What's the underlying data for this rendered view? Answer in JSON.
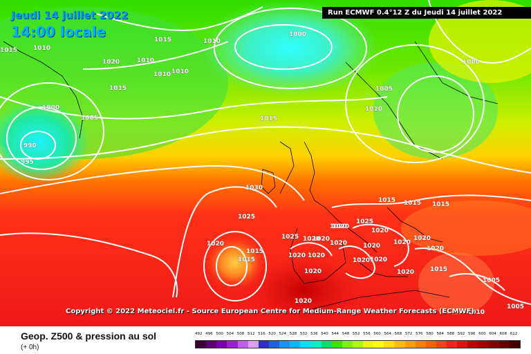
{
  "header": {
    "date_line": "Jeudi 14 juillet 2022",
    "time_line": "14:00 locale",
    "run_info": "Run ECMWF 0.4°12 Z du Jeudi 14 juillet 2022"
  },
  "map": {
    "copyright": "Copyright © 2022 Meteociel.fr - Source European Centre for Medium-Range Weather Forecasts (ECMWF)",
    "pressure_labels": [
      {
        "text": "1015"
      },
      {
        "text": "1010"
      },
      {
        "text": "1020"
      },
      {
        "text": "1015"
      },
      {
        "text": "1010"
      },
      {
        "text": "1010"
      },
      {
        "text": "1010"
      },
      {
        "text": "1000"
      },
      {
        "text": "1010"
      },
      {
        "text": "1005"
      },
      {
        "text": "990"
      },
      {
        "text": "995"
      },
      {
        "text": "1000"
      },
      {
        "text": "1015"
      },
      {
        "text": "1005"
      },
      {
        "text": "1010"
      },
      {
        "text": "1000"
      },
      {
        "text": "1015"
      },
      {
        "text": "1030"
      },
      {
        "text": "1025"
      },
      {
        "text": "1025"
      },
      {
        "text": "1020"
      },
      {
        "text": "1015"
      },
      {
        "text": "1015"
      },
      {
        "text": "1015"
      },
      {
        "text": "1015"
      },
      {
        "text": "1015"
      },
      {
        "text": "1020"
      },
      {
        "text": "1025"
      },
      {
        "text": "1020"
      },
      {
        "text": "1020"
      },
      {
        "text": "1020"
      },
      {
        "text": "1020"
      },
      {
        "text": "1020"
      },
      {
        "text": "1020"
      },
      {
        "text": "1020"
      },
      {
        "text": "1020"
      },
      {
        "text": "1020"
      },
      {
        "text": "1020"
      },
      {
        "text": "1020"
      },
      {
        "text": "1020"
      },
      {
        "text": "1020"
      },
      {
        "text": "1020"
      },
      {
        "text": "1020"
      },
      {
        "text": "1015"
      },
      {
        "text": "1005"
      },
      {
        "text": "1005"
      },
      {
        "text": "1010"
      },
      {
        "text": "1020"
      }
    ]
  },
  "legend": {
    "title": "Geop. Z500 & pression au sol",
    "subtitle": "(+ 0h)",
    "scale_values": [
      "492",
      "496",
      "500",
      "504",
      "508",
      "512",
      "516",
      "520",
      "524",
      "528",
      "532",
      "536",
      "540",
      "544",
      "548",
      "552",
      "556",
      "560",
      "564",
      "568",
      "572",
      "576",
      "580",
      "584",
      "588",
      "592",
      "596",
      "600",
      "604",
      "608",
      "612"
    ],
    "scale_colors": [
      "#3a0035",
      "#5a0070",
      "#7a00a8",
      "#9a20d0",
      "#c060e8",
      "#d8a0f0",
      "#3030c0",
      "#2060e0",
      "#2090ff",
      "#00b8ff",
      "#00e0ff",
      "#00f0c0",
      "#00e070",
      "#40e000",
      "#80f000",
      "#b0f800",
      "#e8f800",
      "#ffff00",
      "#ffe000",
      "#ffc000",
      "#ffa000",
      "#ff8000",
      "#ff6000",
      "#ff4020",
      "#ff2020",
      "#e01010",
      "#c00000",
      "#a00000",
      "#800000",
      "#600000",
      "#400000"
    ]
  }
}
